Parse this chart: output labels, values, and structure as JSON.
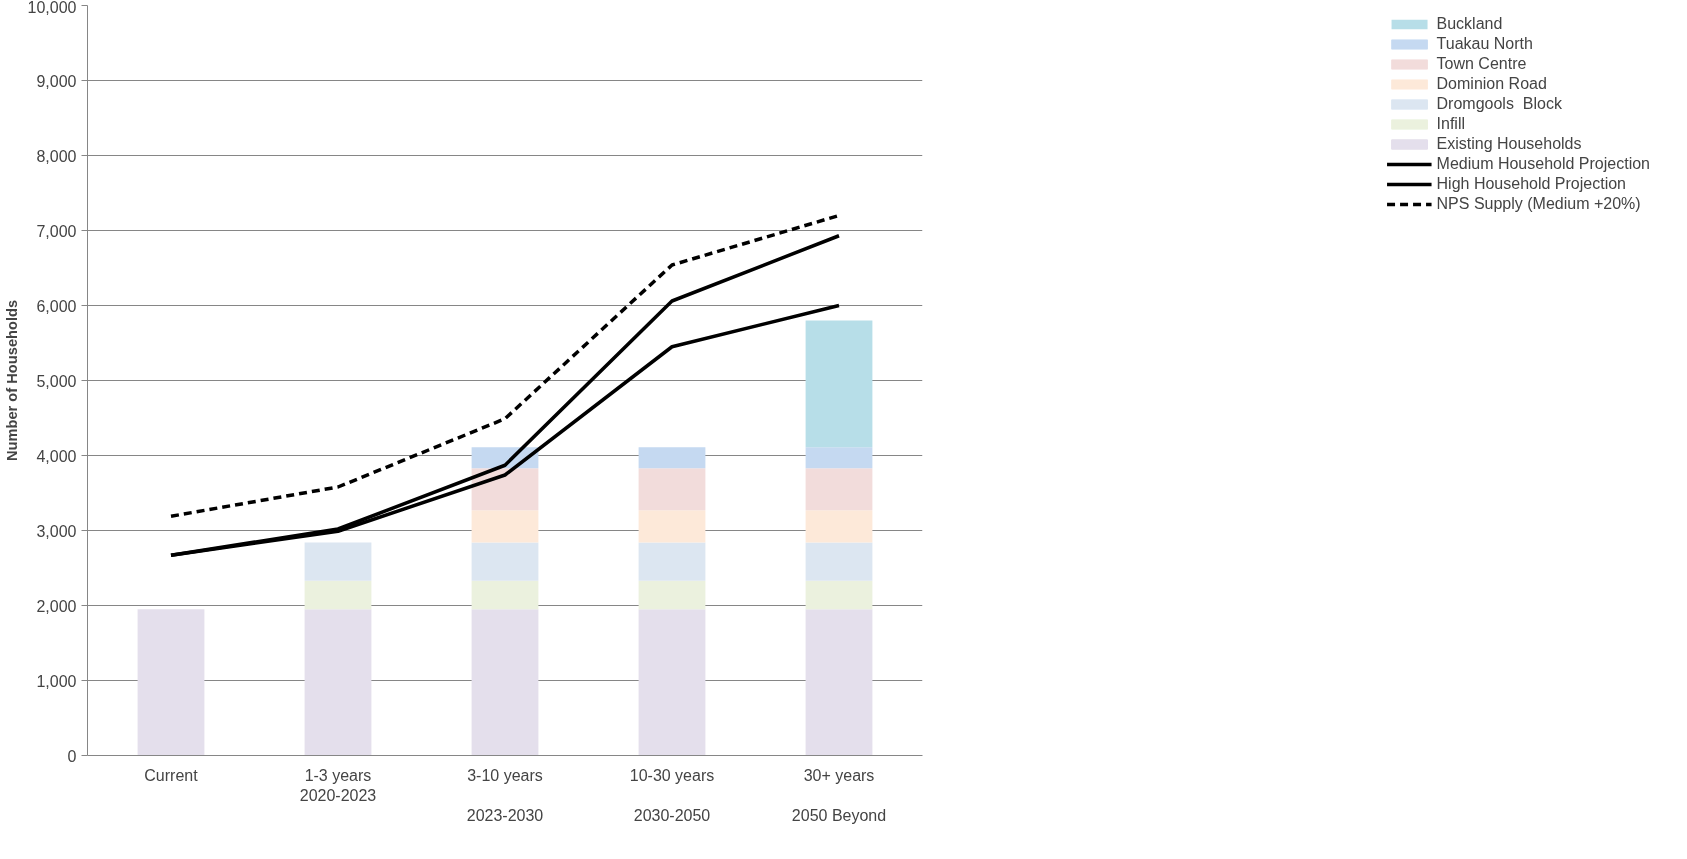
{
  "chart_data": {
    "type": "bar",
    "stacked": true,
    "ylabel": "Number of Households",
    "categories": [
      "Current",
      "1-3 years\n2020-2023",
      "3-10 years\n\n2023-2030",
      "10-30 years\n\n2030-2050",
      "30+ years\n\n2050 Beyond"
    ],
    "ylim": [
      0,
      10000
    ],
    "yticks": [
      0,
      {
        "value": 1000,
        "label": "1,000"
      },
      {
        "value": 2000,
        "label": "2,000"
      },
      {
        "value": 3000,
        "label": "3,000"
      },
      {
        "value": 4000,
        "label": "4,000"
      },
      {
        "value": 5000,
        "label": "5,000"
      },
      {
        "value": 6000,
        "label": "6,000"
      },
      {
        "value": 7000,
        "label": "7,000"
      },
      {
        "value": 8000,
        "label": "8,000"
      },
      {
        "value": 9000,
        "label": "9,000"
      },
      {
        "value": 10000,
        "label": "10,000"
      }
    ],
    "grid": "y",
    "legend": "right",
    "series": [
      {
        "name": "Existing Households",
        "color": "#e4dfec",
        "values": [
          1950,
          1950,
          1950,
          1950,
          1950
        ]
      },
      {
        "name": "Infill",
        "color": "#ebf1de",
        "values": [
          null,
          380,
          380,
          380,
          380
        ]
      },
      {
        "name": "Dromgools  Block",
        "color": "#dce6f1",
        "values": [
          null,
          510,
          510,
          510,
          510
        ]
      },
      {
        "name": "Dominion Road",
        "color": "#fde9d9",
        "values": [
          null,
          null,
          430,
          430,
          430
        ]
      },
      {
        "name": "Town Centre",
        "color": "#f2dcdb",
        "values": [
          null,
          null,
          560,
          560,
          560
        ]
      },
      {
        "name": "Tuakau North",
        "color": "#c5d9f1",
        "values": [
          null,
          null,
          280,
          280,
          280
        ]
      },
      {
        "name": "Buckland",
        "color": "#b7dee8",
        "values": [
          null,
          null,
          null,
          null,
          1690
        ]
      },
      {
        "name": "Medium Household Projection",
        "type": "line",
        "color": "#000000",
        "line_style": "solid",
        "values": [
          2670,
          2990,
          3740,
          5450,
          6000
        ]
      },
      {
        "name": "High Household Projection",
        "type": "line",
        "color": "#000000",
        "line_style": "solid",
        "values": [
          2670,
          3020,
          3870,
          6060,
          6930
        ]
      },
      {
        "name": "NPS Supply (Medium +20%)",
        "type": "line",
        "color": "#000000",
        "line_style": "dashed",
        "values": [
          3190,
          3580,
          4490,
          6540,
          7200
        ]
      }
    ]
  }
}
